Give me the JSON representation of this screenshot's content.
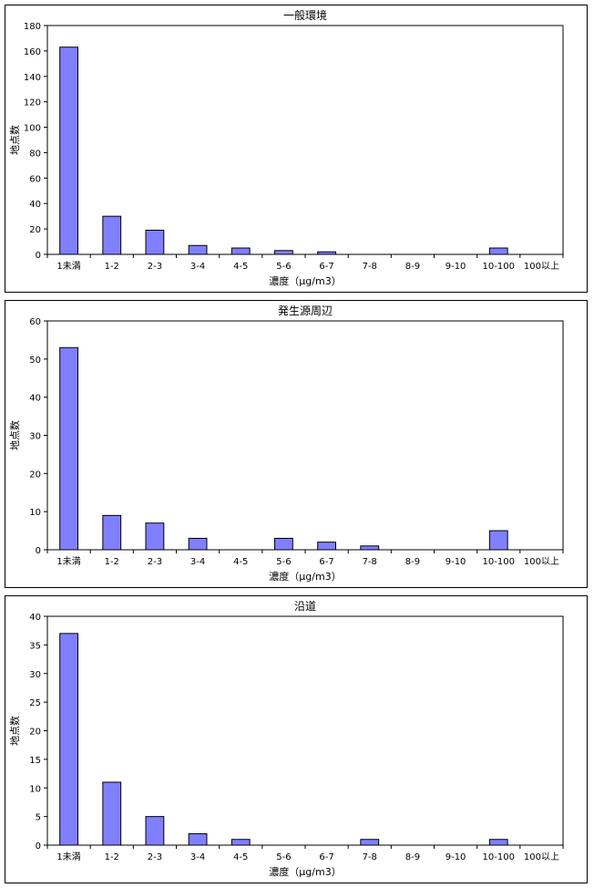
{
  "chart_data": [
    {
      "type": "bar",
      "title": "一般環境",
      "xlabel": "濃度（μg/m3）",
      "ylabel": "地点数",
      "categories": [
        "1未満",
        "1-2",
        "2-3",
        "3-4",
        "4-5",
        "5-6",
        "6-7",
        "7-8",
        "8-9",
        "9-10",
        "10-100",
        "100以上"
      ],
      "values": [
        163,
        30,
        19,
        7,
        5,
        3,
        2,
        0,
        0,
        0,
        5,
        0
      ],
      "yticks": [
        0,
        20,
        40,
        60,
        80,
        100,
        120,
        140,
        160,
        180
      ],
      "ylim": [
        0,
        180
      ],
      "bar_color": "#8080ff"
    },
    {
      "type": "bar",
      "title": "発生源周辺",
      "xlabel": "濃度（μg/m3）",
      "ylabel": "地点数",
      "categories": [
        "1未満",
        "1-2",
        "2-3",
        "3-4",
        "4-5",
        "5-6",
        "6-7",
        "7-8",
        "8-9",
        "9-10",
        "10-100",
        "100以上"
      ],
      "values": [
        53,
        9,
        7,
        3,
        0,
        3,
        2,
        1,
        0,
        0,
        5,
        0
      ],
      "yticks": [
        0,
        10,
        20,
        30,
        40,
        50,
        60
      ],
      "ylim": [
        0,
        60
      ],
      "bar_color": "#8080ff"
    },
    {
      "type": "bar",
      "title": "沿道",
      "xlabel": "濃度（μg/m3）",
      "ylabel": "地点数",
      "categories": [
        "1未満",
        "1-2",
        "2-3",
        "3-4",
        "4-5",
        "5-6",
        "6-7",
        "7-8",
        "8-9",
        "9-10",
        "10-100",
        "100以上"
      ],
      "values": [
        37,
        11,
        5,
        2,
        1,
        0,
        0,
        1,
        0,
        0,
        1,
        0
      ],
      "yticks": [
        0,
        5,
        10,
        15,
        20,
        25,
        30,
        35,
        40
      ],
      "ylim": [
        0,
        40
      ],
      "bar_color": "#8080ff"
    }
  ]
}
